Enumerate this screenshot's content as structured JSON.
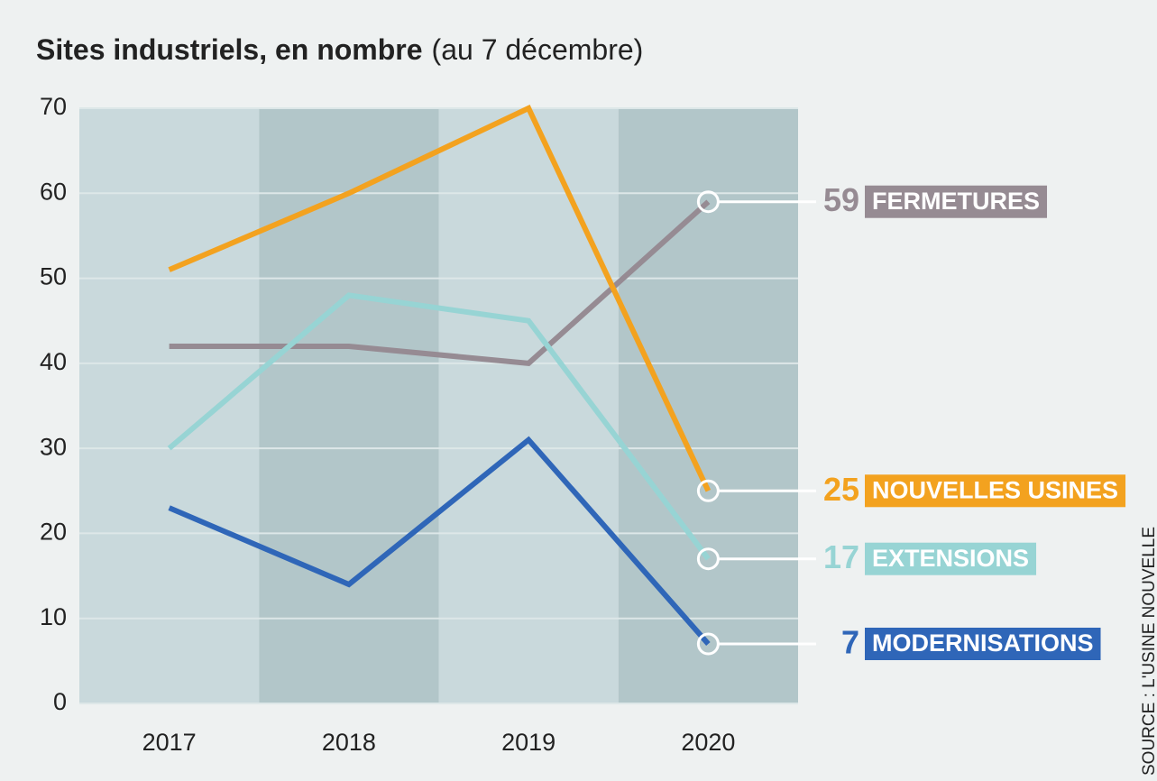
{
  "chart_data": {
    "type": "line",
    "title": "Sites industriels, en nombre",
    "subtitle": "(au 7 décembre)",
    "source": "SOURCE : L'USINE NOUVELLE",
    "categories": [
      "2017",
      "2018",
      "2019",
      "2020"
    ],
    "series": [
      {
        "name": "FERMETURES",
        "color": "#968b93",
        "values": [
          42,
          42,
          40,
          59
        ]
      },
      {
        "name": "NOUVELLES USINES",
        "color": "#f3a21f",
        "values": [
          51,
          60,
          70,
          25
        ]
      },
      {
        "name": "EXTENSIONS",
        "color": "#97d4d4",
        "values": [
          30,
          48,
          45,
          17
        ]
      },
      {
        "name": "MODERNISATIONS",
        "color": "#2f66b8",
        "values": [
          23,
          14,
          31,
          7
        ]
      }
    ],
    "ylim": [
      0,
      70
    ],
    "yticks": [
      0,
      10,
      20,
      30,
      40,
      50,
      60,
      70
    ],
    "grid": true
  }
}
